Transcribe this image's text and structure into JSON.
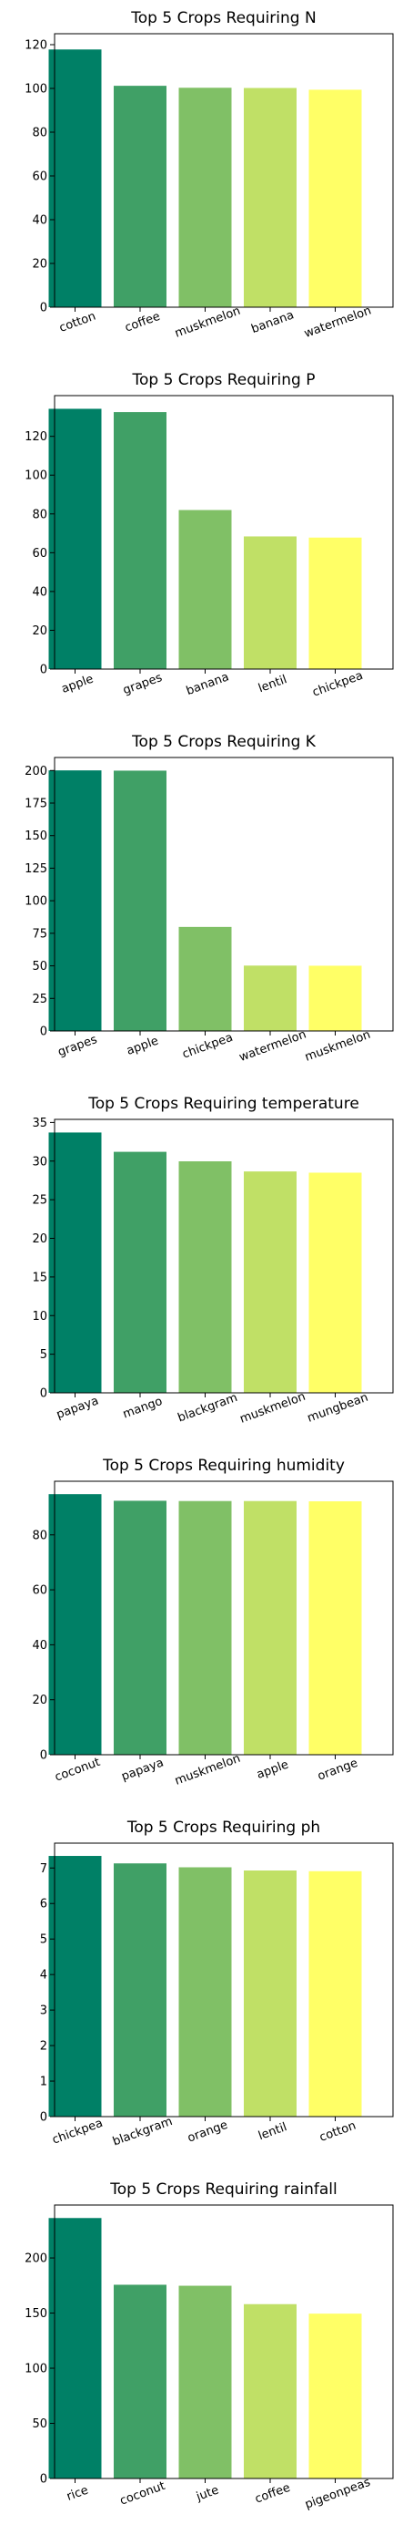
{
  "chart_data": [
    {
      "type": "bar",
      "title": "Top 5 Crops Requiring N",
      "categories": [
        "cotton",
        "coffee",
        "muskmelon",
        "banana",
        "watermelon"
      ],
      "values": [
        117.8,
        101.2,
        100.3,
        100.2,
        99.4
      ],
      "ylim": [
        0,
        125
      ],
      "yticks": [
        0,
        20,
        40,
        60,
        80,
        100,
        120
      ]
    },
    {
      "type": "bar",
      "title": "Top 5 Crops Requiring P",
      "categories": [
        "apple",
        "grapes",
        "banana",
        "lentil",
        "chickpea"
      ],
      "values": [
        134.2,
        132.5,
        82.0,
        68.4,
        67.8
      ],
      "ylim": [
        0,
        141
      ],
      "yticks": [
        0,
        20,
        40,
        60,
        80,
        100,
        120
      ]
    },
    {
      "type": "bar",
      "title": "Top 5 Crops Requiring K",
      "categories": [
        "grapes",
        "apple",
        "chickpea",
        "watermelon",
        "muskmelon"
      ],
      "values": [
        200.1,
        199.9,
        79.9,
        50.2,
        50.1
      ],
      "ylim": [
        0,
        210
      ],
      "yticks": [
        0,
        25,
        50,
        75,
        100,
        125,
        150,
        175,
        200
      ]
    },
    {
      "type": "bar",
      "title": "Top 5 Crops Requiring temperature",
      "categories": [
        "papaya",
        "mango",
        "blackgram",
        "muskmelon",
        "mungbean"
      ],
      "values": [
        33.7,
        31.2,
        29.97,
        28.66,
        28.5
      ],
      "ylim": [
        0,
        35.4
      ],
      "yticks": [
        0,
        5,
        10,
        15,
        20,
        25,
        30,
        35
      ]
    },
    {
      "type": "bar",
      "title": "Top 5 Crops Requiring humidity",
      "categories": [
        "coconut",
        "papaya",
        "muskmelon",
        "apple",
        "orange"
      ],
      "values": [
        94.8,
        92.4,
        92.3,
        92.3,
        92.2
      ],
      "ylim": [
        0,
        99.5
      ],
      "yticks": [
        0,
        20,
        40,
        60,
        80
      ]
    },
    {
      "type": "bar",
      "title": "Top 5 Crops Requiring ph",
      "categories": [
        "chickpea",
        "blackgram",
        "orange",
        "lentil",
        "cotton"
      ],
      "values": [
        7.34,
        7.13,
        7.02,
        6.93,
        6.91
      ],
      "ylim": [
        0,
        7.7
      ],
      "yticks": [
        0,
        1,
        2,
        3,
        4,
        5,
        6,
        7
      ]
    },
    {
      "type": "bar",
      "title": "Top 5 Crops Requiring rainfall",
      "categories": [
        "rice",
        "coconut",
        "jute",
        "coffee",
        "pigeonpeas"
      ],
      "values": [
        236.2,
        175.7,
        174.8,
        158.1,
        149.5
      ],
      "ylim": [
        0,
        248
      ],
      "yticks": [
        0,
        50,
        100,
        150,
        200
      ]
    }
  ],
  "colors": [
    "#008066",
    "#40a066",
    "#80c066",
    "#c0e066",
    "#ffff66"
  ]
}
